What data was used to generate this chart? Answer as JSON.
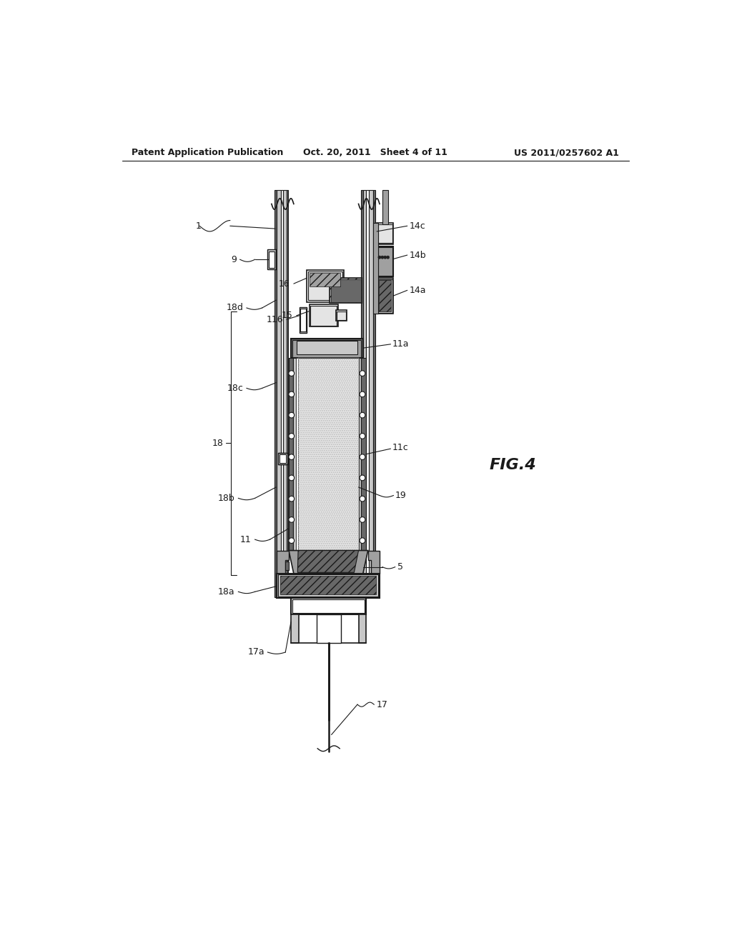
{
  "bg_color": "#ffffff",
  "lc": "#1a1a1a",
  "gray1": "#c8c8c8",
  "gray2": "#a0a0a0",
  "gray3": "#686868",
  "gray4": "#e4e4e4",
  "dot_fill": "#e8e8e8",
  "header_left": "Patent Application Publication",
  "header_mid": "Oct. 20, 2011   Sheet 4 of 11",
  "header_right": "US 2011/0257602 A1",
  "fig_label": "FIG.4"
}
